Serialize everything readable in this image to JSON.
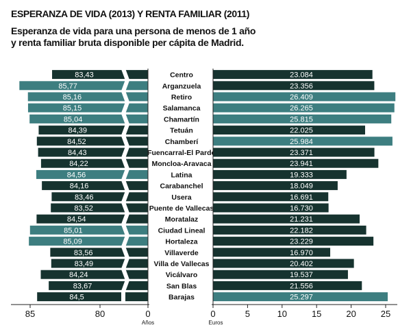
{
  "header": {
    "title": "ESPERANZA DE VIDA (2013) Y RENTA FAMILIAR (2011)",
    "subtitle": "Esperanza de vida para una persona de menos de 1 año y renta familiar bruta disponible per cápita de Madrid."
  },
  "colors": {
    "dark": "#16332f",
    "teal": "#3d7e80",
    "district_label": "#111111",
    "axis": "#222222"
  },
  "chart_data": [
    {
      "type": "bar",
      "orientation": "horizontal",
      "direction": "right-to-left",
      "title": "",
      "xlabel": "Años",
      "ylabel": "",
      "categories": [
        "Centro",
        "Arganzuela",
        "Retiro",
        "Salamanca",
        "Chamartín",
        "Tetuán",
        "Chamberí",
        "Fuencarral-El Pardo",
        "Moncloa-Aravaca",
        "Latina",
        "Carabanchel",
        "Usera",
        "Puente de Vallecas",
        "Moratalaz",
        "Ciudad Lineal",
        "Hortaleza",
        "Villaverde",
        "Villa de Vallecas",
        "Vicálvaro",
        "San Blas",
        "Barajas"
      ],
      "values": [
        83.43,
        85.77,
        85.16,
        85.15,
        85.04,
        84.39,
        84.52,
        84.43,
        84.22,
        84.56,
        84.16,
        83.46,
        83.52,
        84.54,
        85.01,
        85.09,
        83.56,
        83.49,
        84.24,
        83.67,
        84.5
      ],
      "value_labels": [
        "83,43",
        "85,77",
        "85,16",
        "85,15",
        "85,04",
        "84,39",
        "84,52",
        "84,43",
        "84,22",
        "84,56",
        "84,16",
        "83,46",
        "83,52",
        "84,54",
        "85,01",
        "85,09",
        "83,56",
        "83,49",
        "84,24",
        "83,67",
        "84,5"
      ],
      "bar_colors": [
        "dark",
        "teal",
        "teal",
        "teal",
        "teal",
        "dark",
        "dark",
        "dark",
        "dark",
        "teal",
        "dark",
        "dark",
        "dark",
        "dark",
        "teal",
        "teal",
        "dark",
        "dark",
        "dark",
        "dark",
        "dark"
      ],
      "axis_break": true,
      "xticks": [
        {
          "value": 85,
          "label": "85"
        },
        {
          "value": 80,
          "label": "80"
        },
        {
          "value": 0,
          "label": "0"
        }
      ]
    },
    {
      "type": "bar",
      "orientation": "horizontal",
      "title": "",
      "xlabel": "Euros",
      "ylabel": "",
      "categories": [
        "Centro",
        "Arganzuela",
        "Retiro",
        "Salamanca",
        "Chamartín",
        "Tetuán",
        "Chamberí",
        "Fuencarral-El Pardo",
        "Moncloa-Aravaca",
        "Latina",
        "Carabanchel",
        "Usera",
        "Puente de Vallecas",
        "Moratalaz",
        "Ciudad Lineal",
        "Hortaleza",
        "Villaverde",
        "Villa de Vallecas",
        "Vicálvaro",
        "San Blas",
        "Barajas"
      ],
      "values": [
        23084,
        23356,
        26409,
        26265,
        25815,
        22025,
        25984,
        23371,
        23941,
        19333,
        18049,
        16691,
        16730,
        21231,
        22182,
        23229,
        16970,
        20402,
        19537,
        21556,
        25297
      ],
      "value_labels": [
        "23.084",
        "23.356",
        "26.409",
        "26.265",
        "25.815",
        "22.025",
        "25.984",
        "23.371",
        "23.941",
        "19.333",
        "18.049",
        "16.691",
        "16.730",
        "21.231",
        "22.182",
        "23.229",
        "16.970",
        "20.402",
        "19.537",
        "21.556",
        "25.297"
      ],
      "bar_colors": [
        "dark",
        "dark",
        "teal",
        "teal",
        "teal",
        "dark",
        "teal",
        "dark",
        "dark",
        "dark",
        "dark",
        "dark",
        "dark",
        "dark",
        "dark",
        "dark",
        "dark",
        "dark",
        "dark",
        "dark",
        "teal"
      ],
      "xlim": [
        0,
        26500
      ],
      "xticks": [
        {
          "value": 0,
          "label": "0"
        },
        {
          "value": 5000,
          "label": "5"
        },
        {
          "value": 10000,
          "label": "10"
        },
        {
          "value": 15000,
          "label": "15"
        },
        {
          "value": 20000,
          "label": "20"
        },
        {
          "value": 25000,
          "label": "25"
        }
      ]
    }
  ]
}
